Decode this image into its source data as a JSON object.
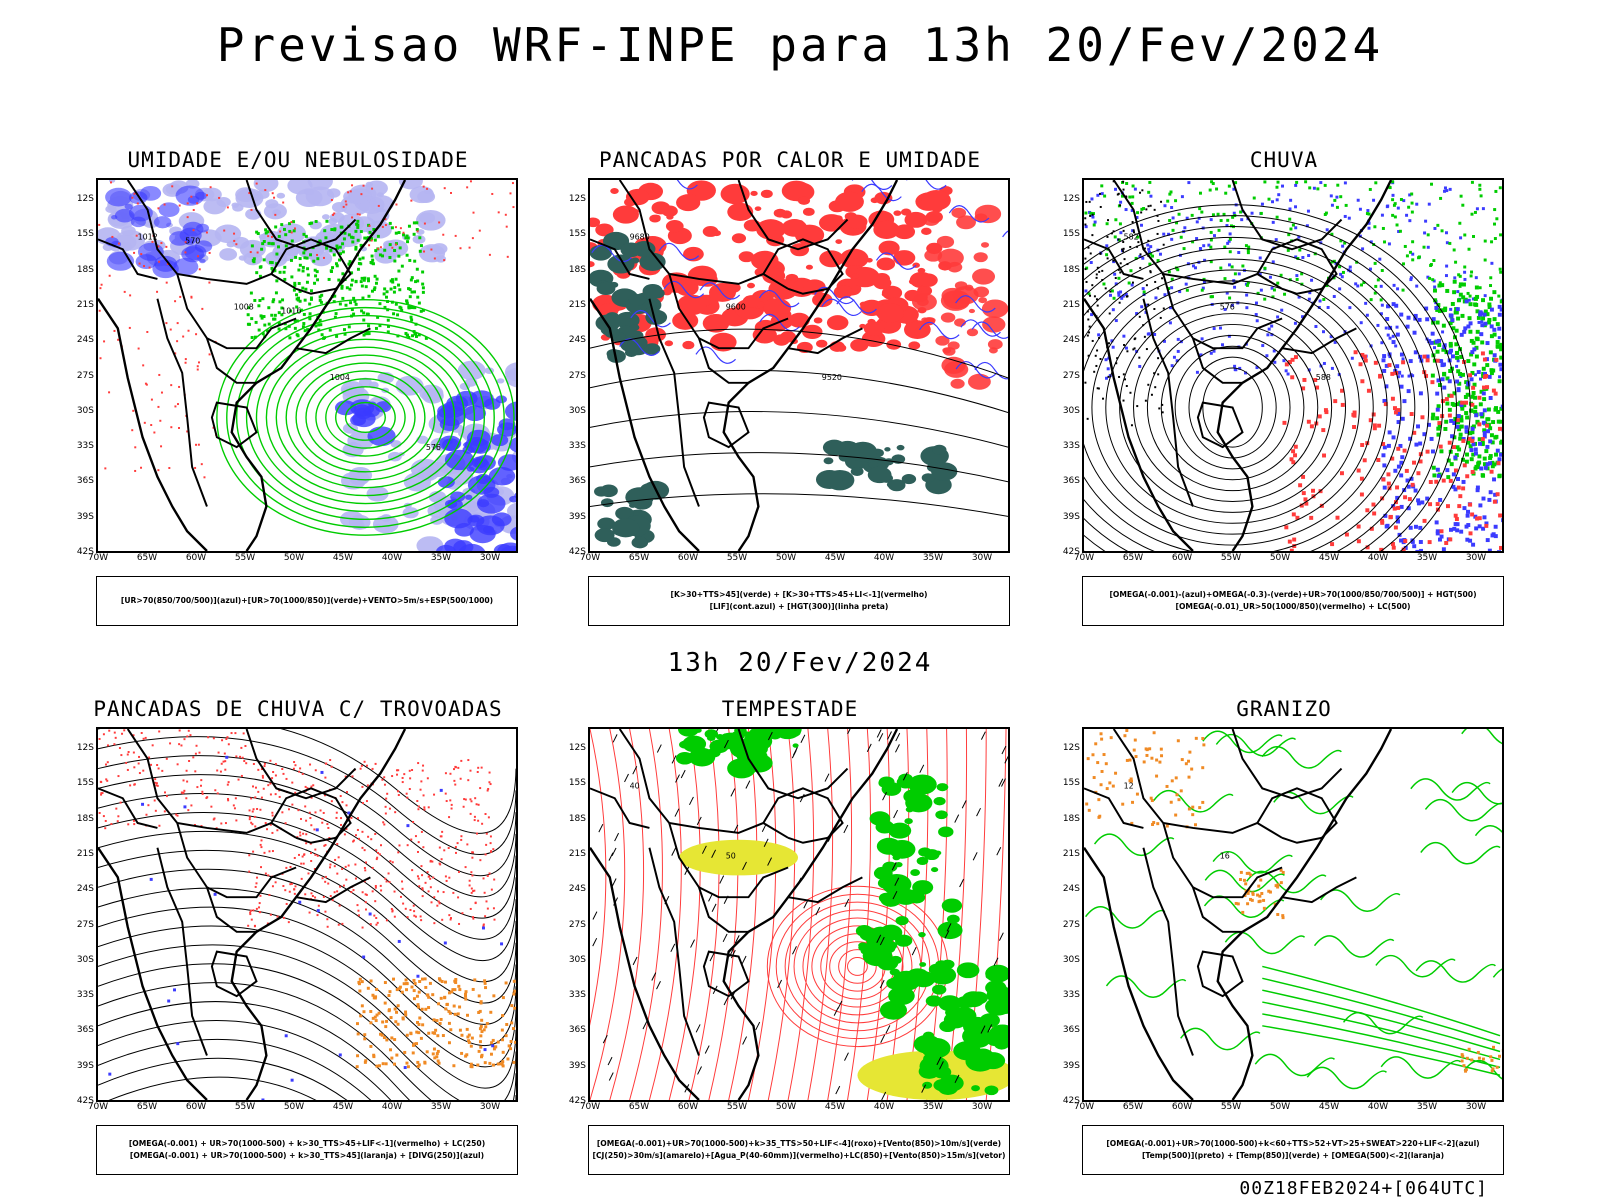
{
  "title": "Previsao WRF-INPE  para 13h 20/Fev/2024",
  "subtitle": "13h 20/Fev/2024",
  "run_label": "00Z18FEB2024+[064UTC]",
  "lat_labels": [
    "12S",
    "15S",
    "18S",
    "21S",
    "24S",
    "27S",
    "30S",
    "33S",
    "36S",
    "39S",
    "42S"
  ],
  "lon_labels": [
    "70W",
    "65W",
    "60W",
    "55W",
    "50W",
    "45W",
    "40W",
    "35W",
    "30W"
  ],
  "colors": {
    "blue": "#3b3bff",
    "lightblue": "#b5b5f2",
    "green": "#00cc00",
    "red": "#ff3b3b",
    "darkteal": "#2f5f5a",
    "yellow": "#e6e634",
    "orange": "#f08a24",
    "black": "#000000"
  },
  "panels": [
    {
      "title": "UMIDADE E/OU NEBULOSIDADE",
      "legend": [
        "[UR>70(850/700/500)](azul)+[UR>70(1000/850)](verde)+VENTO>5m/s+ESP(500/1000)"
      ],
      "contour_labels": [
        "1012",
        "1008",
        "1004",
        "576",
        "570",
        "1016"
      ]
    },
    {
      "title": "PANCADAS POR CALOR E UMIDADE",
      "legend": [
        "[K>30+TTS>45](verde)  +  [K>30+TTS>45+LI<-1](vermelho)",
        "[LIF](cont.azul)  +  [HGT(300)](linha preta)"
      ],
      "contour_labels": [
        "9680",
        "9600",
        "9520"
      ]
    },
    {
      "title": "CHUVA",
      "legend": [
        "[OMEGA(-0.001)-(azul)+OMEGA(-0.3)-(verde)+UR>70(1000/850/700/500)]  +  HGT(500)",
        "[OMEGA(-0.01)_UR>50(1000/850)(vermelho)  +  LC(500)"
      ],
      "contour_labels": [
        "582",
        "576",
        "588"
      ]
    },
    {
      "title": "PANCADAS DE CHUVA C/ TROVOADAS",
      "legend": [
        "[OMEGA(-0.001)  +  UR>70(1000-500)  +  k>30_TTS>45+LIF<-1](vermelho)  +  LC(250)",
        "[OMEGA(-0.001)  +  UR>70(1000-500)  +  k>30_TTS>45](laranja)  +  [DIVG(250)](azul)"
      ],
      "contour_labels": []
    },
    {
      "title": "TEMPESTADE",
      "legend": [
        "[OMEGA(-0.001)+UR>70(1000-500)+k>35_TTS>50+LIF<-4](roxo)+[Vento(850)>10m/s](verde)",
        "[CJ(250)>30m/s](amarelo)+[Agua_P(40-60mm)](vermelho)+LC(850)+[Vento(850)>15m/s](vetor)"
      ],
      "contour_labels": [
        "40",
        "50"
      ]
    },
    {
      "title": "GRANIZO",
      "legend": [
        "[OMEGA(-0.001)+UR>70(1000-500)+k<60+TTS>52+VT>25+SWEAT>220+LIF<-2](azul)",
        "[Temp(500)](preto)  +  [Temp(850)](verde)  +  [OMEGA(500)<-2](laranja)"
      ],
      "contour_labels": [
        "12",
        "16"
      ]
    }
  ]
}
